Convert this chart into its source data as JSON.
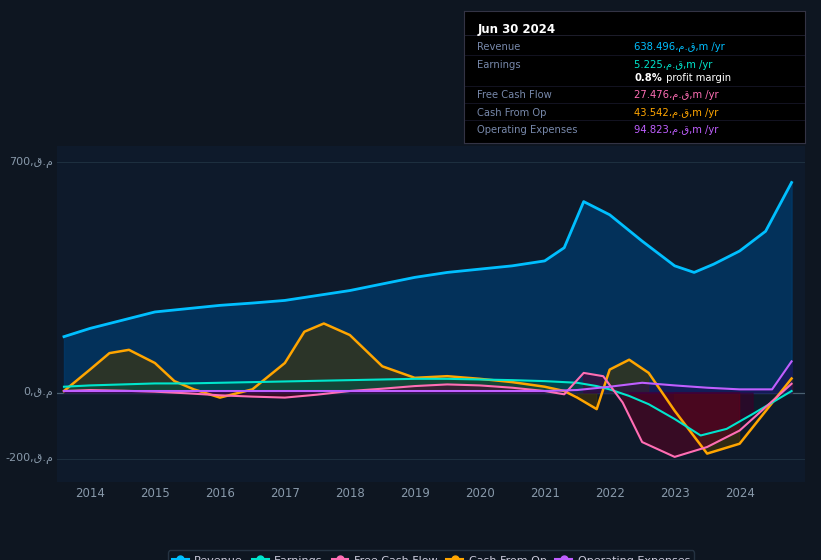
{
  "background_color": "#0e1621",
  "plot_bg_color": "#0e1a2b",
  "ylim": [
    -270,
    750
  ],
  "xlim": [
    2013.5,
    2025.0
  ],
  "xticks": [
    2014,
    2015,
    2016,
    2017,
    2018,
    2019,
    2020,
    2021,
    2022,
    2023,
    2024
  ],
  "revenue_x": [
    2013.6,
    2014.0,
    2014.5,
    2015.0,
    2015.5,
    2016.0,
    2016.5,
    2017.0,
    2017.5,
    2018.0,
    2018.5,
    2019.0,
    2019.5,
    2020.0,
    2020.5,
    2021.0,
    2021.3,
    2021.6,
    2022.0,
    2022.5,
    2023.0,
    2023.3,
    2023.6,
    2024.0,
    2024.4,
    2024.8
  ],
  "revenue_y": [
    170,
    195,
    220,
    245,
    255,
    265,
    272,
    280,
    295,
    310,
    330,
    350,
    365,
    375,
    385,
    400,
    440,
    580,
    540,
    460,
    385,
    365,
    390,
    430,
    490,
    638
  ],
  "earnings_x": [
    2013.6,
    2014.0,
    2014.5,
    2015.0,
    2015.5,
    2016.0,
    2016.5,
    2017.0,
    2017.5,
    2018.0,
    2018.5,
    2019.0,
    2019.5,
    2020.0,
    2020.5,
    2021.0,
    2021.5,
    2021.8,
    2022.0,
    2022.3,
    2022.6,
    2023.0,
    2023.4,
    2023.8,
    2024.2,
    2024.8
  ],
  "earnings_y": [
    18,
    22,
    25,
    28,
    28,
    30,
    32,
    34,
    36,
    38,
    40,
    42,
    42,
    40,
    38,
    35,
    30,
    20,
    10,
    -10,
    -35,
    -80,
    -130,
    -110,
    -65,
    5
  ],
  "fcf_x": [
    2013.6,
    2014.0,
    2014.5,
    2015.0,
    2015.5,
    2016.0,
    2016.5,
    2017.0,
    2017.5,
    2018.0,
    2018.5,
    2019.0,
    2019.5,
    2020.0,
    2020.5,
    2021.0,
    2021.3,
    2021.6,
    2021.9,
    2022.2,
    2022.5,
    2023.0,
    2023.5,
    2024.0,
    2024.8
  ],
  "fcf_y": [
    5,
    8,
    6,
    3,
    -2,
    -8,
    -12,
    -15,
    -6,
    5,
    12,
    20,
    25,
    22,
    15,
    5,
    -5,
    60,
    50,
    -30,
    -150,
    -195,
    -165,
    -115,
    27
  ],
  "cfo_x": [
    2013.6,
    2014.0,
    2014.3,
    2014.6,
    2015.0,
    2015.3,
    2015.6,
    2016.0,
    2016.5,
    2017.0,
    2017.3,
    2017.6,
    2018.0,
    2018.5,
    2019.0,
    2019.5,
    2020.0,
    2020.5,
    2021.0,
    2021.3,
    2021.5,
    2021.8,
    2022.0,
    2022.3,
    2022.6,
    2023.0,
    2023.5,
    2024.0,
    2024.8
  ],
  "cfo_y": [
    5,
    70,
    120,
    130,
    90,
    35,
    10,
    -15,
    10,
    90,
    185,
    210,
    175,
    80,
    45,
    50,
    42,
    32,
    18,
    5,
    -15,
    -50,
    70,
    100,
    60,
    -55,
    -185,
    -155,
    43
  ],
  "oe_x": [
    2013.6,
    2014.0,
    2014.5,
    2015.0,
    2015.5,
    2016.0,
    2016.5,
    2017.0,
    2017.5,
    2018.0,
    2018.5,
    2019.0,
    2019.5,
    2020.0,
    2020.5,
    2021.0,
    2021.5,
    2022.0,
    2022.5,
    2023.0,
    2023.5,
    2024.0,
    2024.5,
    2024.8
  ],
  "oe_y": [
    5,
    5,
    5,
    5,
    5,
    5,
    5,
    5,
    5,
    5,
    5,
    5,
    5,
    5,
    5,
    5,
    8,
    18,
    30,
    22,
    15,
    10,
    10,
    95
  ],
  "revenue_color": "#00bfff",
  "revenue_fill": "#003a6b",
  "earnings_color": "#00e5cc",
  "earnings_fill_pos": "#005544",
  "earnings_fill_neg": "#3a0028",
  "fcf_color": "#ff6eb4",
  "fcf_fill_pos": "#550030",
  "fcf_fill_neg": "#5a0020",
  "cfo_color": "#ffa500",
  "cfo_fill_pos": "#4d3800",
  "cfo_fill_neg": "#4d3800",
  "oe_color": "#bf5fff",
  "oe_fill": "#2a0055",
  "zero_line_color": "#4a6070",
  "grid_color": "#1e3040",
  "tick_color": "#8899aa",
  "ylabel_700": "700,ق.م",
  "ylabel_0": "0,ق.م",
  "ylabel_n200": "-200,ق.م",
  "legend_items": [
    "Revenue",
    "Earnings",
    "Free Cash Flow",
    "Cash From Op",
    "Operating Expenses"
  ],
  "legend_colors": [
    "#00bfff",
    "#00e5cc",
    "#ff6eb4",
    "#ffa500",
    "#bf5fff"
  ],
  "info_bg": "#000000",
  "info_border": "#333344",
  "info_title": "Jun 30 2024",
  "info_title_color": "#ffffff",
  "info_rows": [
    {
      "label": "Revenue",
      "value": "638.496،م.ق,m /yr",
      "color": "#00bfff",
      "sep": true
    },
    {
      "label": "Earnings",
      "value": "5.225،م.ق,m /yr",
      "color": "#00e5cc",
      "sep": false
    },
    {
      "label": "",
      "value": "0.8% profit margin",
      "color": "#ffffff",
      "sep": true
    },
    {
      "label": "Free Cash Flow",
      "value": "27.476،م.ق,m /yr",
      "color": "#ff6eb4",
      "sep": true
    },
    {
      "label": "Cash From Op",
      "value": "43.542،م.ق,m /yr",
      "color": "#ffa500",
      "sep": true
    },
    {
      "label": "Operating Expenses",
      "value": "94.823،م.ق,m /yr",
      "color": "#bf5fff",
      "sep": false
    }
  ]
}
